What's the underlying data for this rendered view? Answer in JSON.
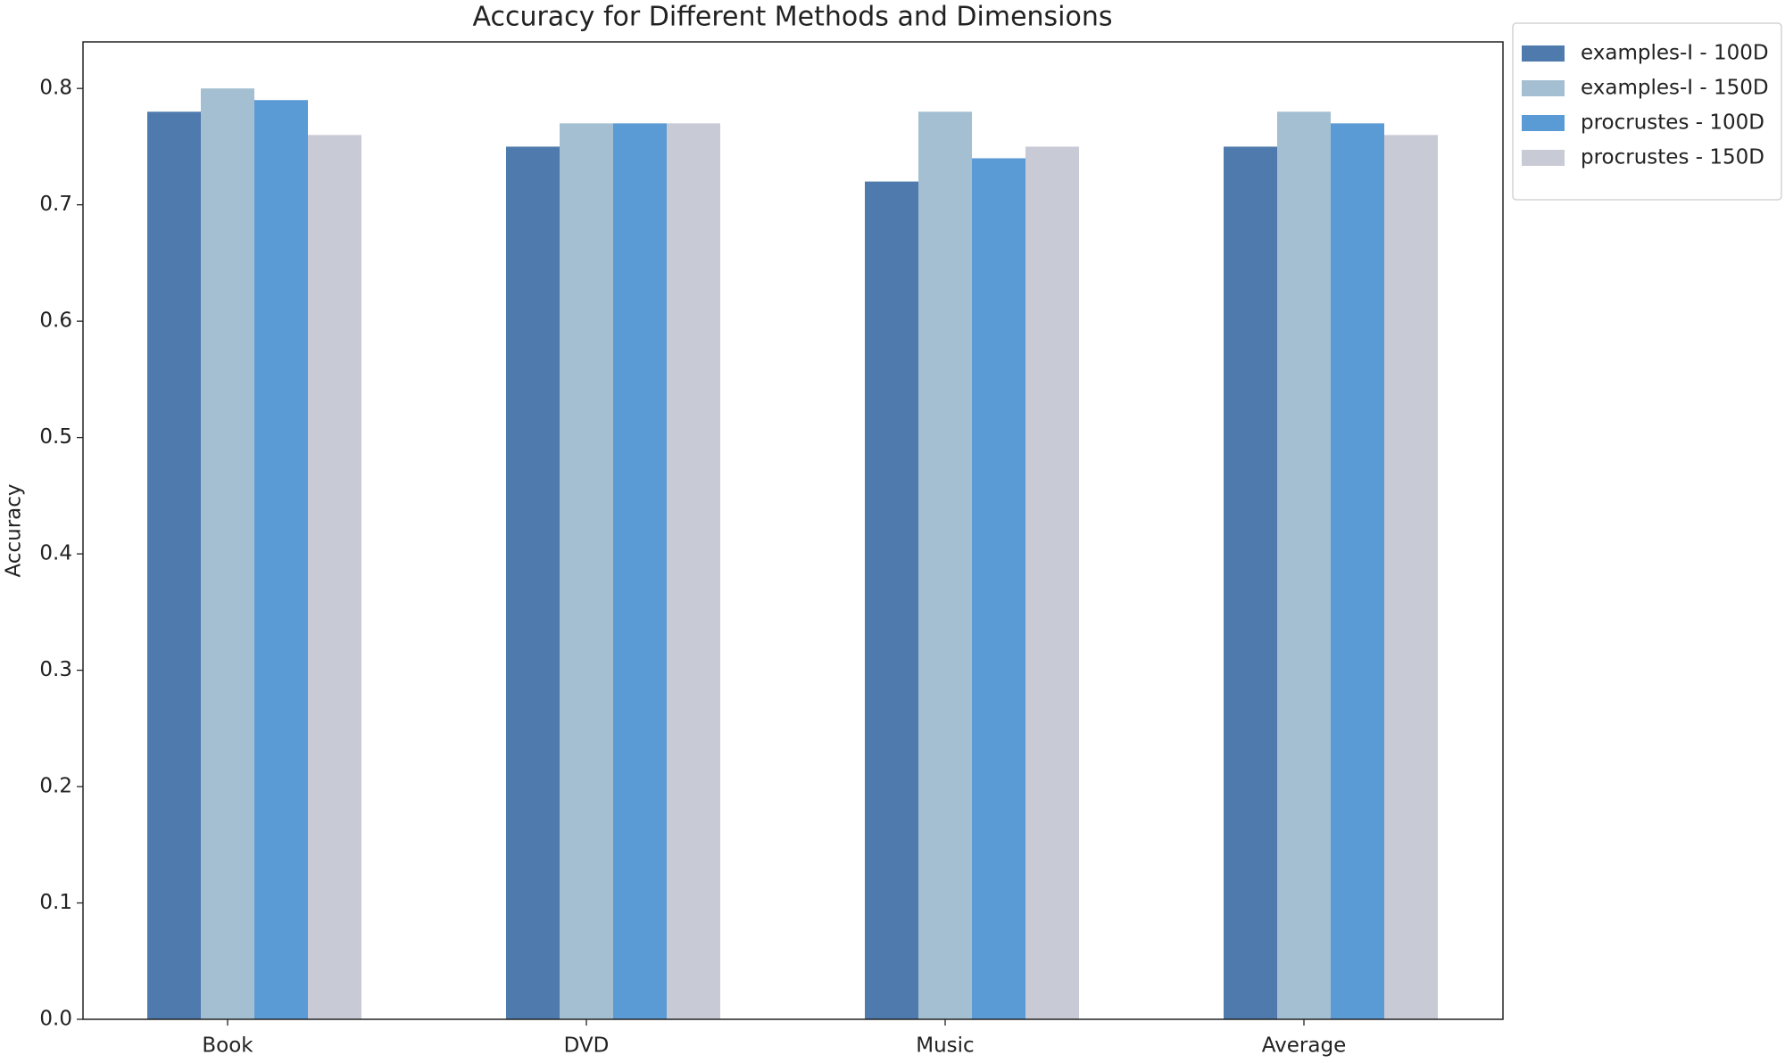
{
  "chart_data": {
    "type": "bar",
    "title": "Accuracy for Different Methods and Dimensions",
    "y_label": "Accuracy",
    "categories": [
      "Book",
      "DVD",
      "Music",
      "Average"
    ],
    "series": [
      {
        "name": "examples-I - 100D",
        "color": "#4f7aad",
        "values": [
          0.78,
          0.75,
          0.72,
          0.75
        ]
      },
      {
        "name": "examples-I - 150D",
        "color": "#a3bfd1",
        "values": [
          0.8,
          0.77,
          0.78,
          0.78
        ]
      },
      {
        "name": "procrustes - 100D",
        "color": "#5b9bd5",
        "values": [
          0.79,
          0.77,
          0.74,
          0.77
        ]
      },
      {
        "name": "procrustes - 150D",
        "color": "#c8cad6",
        "values": [
          0.76,
          0.77,
          0.75,
          0.76
        ]
      }
    ],
    "ylim": [
      0,
      0.84
    ],
    "yticks": [
      {
        "value": 0,
        "label": "0.0"
      },
      0.1,
      0.2,
      0.3,
      0.4,
      0.5,
      0.6,
      0.7,
      0.8
    ],
    "grid": false,
    "legend": "outside upper right"
  }
}
